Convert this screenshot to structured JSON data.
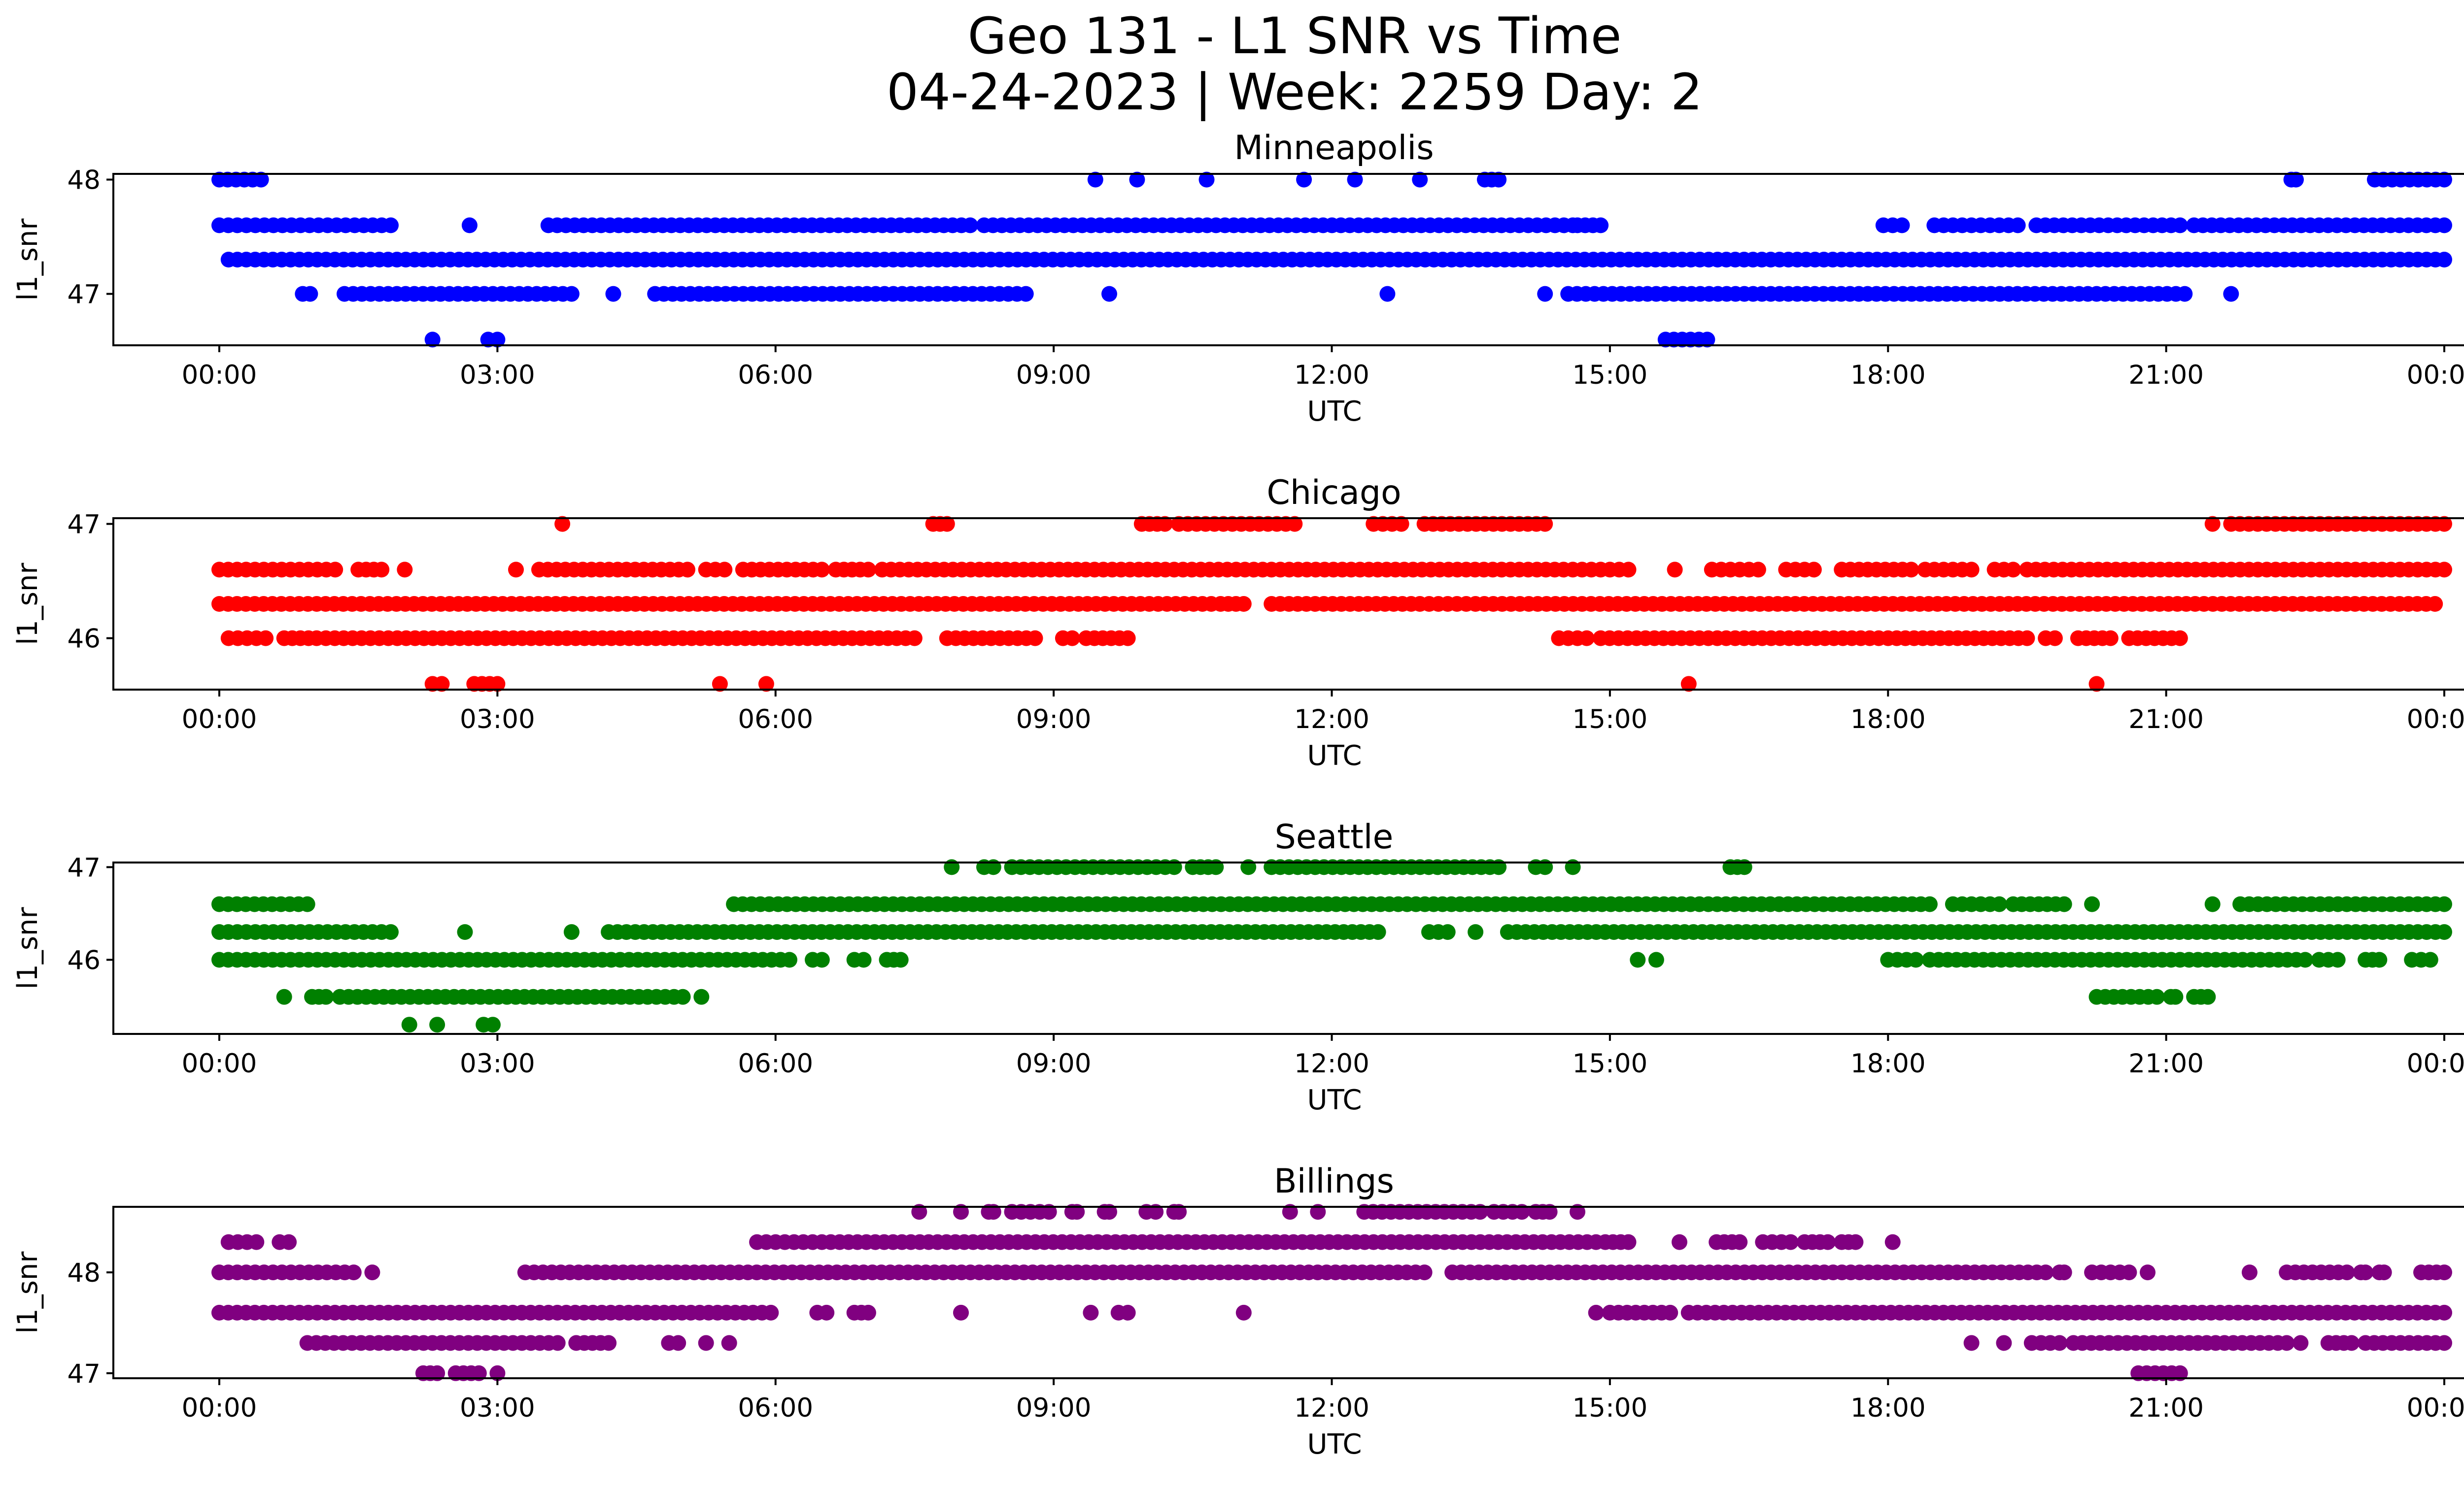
{
  "figure": {
    "title_line1": "Geo 131 - L1 SNR vs Time",
    "title_line2": "04-24-2023 | Week: 2259 Day: 2"
  },
  "chart_data": [
    {
      "type": "scatter",
      "title": "Minneapolis",
      "xlabel": "UTC",
      "ylabel": "l1_snr",
      "color": "#0000ff",
      "x_ticks": [
        "00:00",
        "03:00",
        "06:00",
        "09:00",
        "12:00",
        "15:00",
        "18:00",
        "21:00",
        "00:00"
      ],
      "x_range_hours": [
        0,
        24
      ],
      "y_ticks": [
        47,
        48
      ],
      "ylim": [
        46.55,
        48.05
      ],
      "series": [
        {
          "y": 48.0,
          "segments": [
            [
              0.0,
              0.45
            ],
            [
              9.45,
              9.45
            ],
            [
              9.9,
              9.9
            ],
            [
              10.65,
              10.65
            ],
            [
              11.7,
              11.7
            ],
            [
              12.25,
              12.25
            ],
            [
              12.95,
              12.95
            ],
            [
              13.65,
              13.8
            ],
            [
              22.35,
              22.4
            ],
            [
              23.25,
              24.0
            ]
          ]
        },
        {
          "y": 47.6,
          "segments": [
            [
              0.0,
              1.85
            ],
            [
              2.7,
              2.7
            ],
            [
              3.55,
              8.1
            ],
            [
              8.25,
              14.6
            ],
            [
              14.65,
              14.9
            ],
            [
              17.95,
              18.15
            ],
            [
              18.5,
              19.4
            ],
            [
              19.6,
              21.15
            ],
            [
              21.3,
              24.0
            ]
          ]
        },
        {
          "y": 47.3,
          "segments": [
            [
              0.1,
              24.0
            ]
          ]
        },
        {
          "y": 47.0,
          "segments": [
            [
              0.9,
              0.98
            ],
            [
              1.35,
              3.8
            ],
            [
              4.25,
              4.25
            ],
            [
              4.7,
              8.7
            ],
            [
              9.6,
              9.6
            ],
            [
              12.6,
              12.6
            ],
            [
              14.3,
              14.3
            ],
            [
              14.55,
              21.2
            ],
            [
              21.7,
              21.7
            ]
          ]
        },
        {
          "y": 46.6,
          "segments": [
            [
              2.3,
              2.3
            ],
            [
              2.9,
              3.0
            ],
            [
              15.6,
              16.05
            ]
          ]
        }
      ]
    },
    {
      "type": "scatter",
      "title": "Chicago",
      "xlabel": "UTC",
      "ylabel": "l1_snr",
      "color": "#ff0000",
      "x_ticks": [
        "00:00",
        "03:00",
        "06:00",
        "09:00",
        "12:00",
        "15:00",
        "18:00",
        "21:00",
        "00:00"
      ],
      "x_range_hours": [
        0,
        24
      ],
      "y_ticks": [
        46,
        47
      ],
      "ylim": [
        45.55,
        47.05
      ],
      "series": [
        {
          "y": 47.0,
          "segments": [
            [
              3.7,
              3.7
            ],
            [
              7.7,
              7.85
            ],
            [
              9.95,
              10.2
            ],
            [
              10.35,
              11.6
            ],
            [
              12.45,
              12.75
            ],
            [
              13.0,
              14.3
            ],
            [
              21.5,
              21.5
            ],
            [
              21.7,
              24.0
            ]
          ]
        },
        {
          "y": 46.6,
          "segments": [
            [
              0.0,
              1.25
            ],
            [
              1.5,
              1.75
            ],
            [
              2.0,
              2.0
            ],
            [
              3.2,
              3.2
            ],
            [
              3.45,
              5.05
            ],
            [
              5.25,
              5.45
            ],
            [
              5.65,
              6.5
            ],
            [
              6.65,
              7.0
            ],
            [
              7.15,
              14.5
            ],
            [
              14.6,
              15.2
            ],
            [
              15.7,
              15.7
            ],
            [
              16.1,
              16.6
            ],
            [
              16.9,
              17.2
            ],
            [
              17.5,
              18.25
            ],
            [
              18.4,
              18.9
            ],
            [
              19.15,
              19.35
            ],
            [
              19.5,
              24.0
            ]
          ]
        },
        {
          "y": 46.3,
          "segments": [
            [
              0.0,
              10.7
            ],
            [
              10.8,
              11.05
            ],
            [
              11.35,
              12.95
            ],
            [
              13.05,
              13.45
            ],
            [
              13.55,
              23.9
            ]
          ]
        },
        {
          "y": 46.0,
          "segments": [
            [
              0.1,
              0.5
            ],
            [
              0.7,
              1.05
            ],
            [
              1.15,
              7.5
            ],
            [
              7.85,
              8.8
            ],
            [
              9.1,
              9.2
            ],
            [
              9.35,
              9.8
            ],
            [
              14.45,
              14.75
            ],
            [
              14.9,
              17.9
            ],
            [
              18.0,
              19.5
            ],
            [
              19.7,
              19.8
            ],
            [
              20.05,
              20.4
            ],
            [
              20.6,
              21.15
            ]
          ]
        },
        {
          "y": 45.6,
          "segments": [
            [
              2.3,
              2.4
            ],
            [
              2.75,
              3.0
            ],
            [
              5.4,
              5.4
            ],
            [
              5.9,
              5.9
            ],
            [
              15.85,
              15.85
            ],
            [
              20.25,
              20.25
            ]
          ]
        }
      ]
    },
    {
      "type": "scatter",
      "title": "Seattle",
      "xlabel": "UTC",
      "ylabel": "l1_snr",
      "color": "#008000",
      "x_ticks": [
        "00:00",
        "03:00",
        "06:00",
        "09:00",
        "12:00",
        "15:00",
        "18:00",
        "21:00",
        "00:00"
      ],
      "x_range_hours": [
        0,
        24
      ],
      "y_ticks": [
        46,
        47
      ],
      "ylim": [
        45.2,
        47.05
      ],
      "series": [
        {
          "y": 47.0,
          "segments": [
            [
              7.9,
              7.9
            ],
            [
              8.25,
              8.35
            ],
            [
              8.55,
              10.3
            ],
            [
              10.5,
              10.75
            ],
            [
              11.1,
              11.1
            ],
            [
              11.35,
              13.8
            ],
            [
              14.2,
              14.3
            ],
            [
              14.6,
              14.6
            ],
            [
              16.3,
              16.45
            ]
          ]
        },
        {
          "y": 46.6,
          "segments": [
            [
              0.0,
              0.95
            ],
            [
              5.55,
              18.45
            ],
            [
              18.7,
              19.2
            ],
            [
              19.35,
              19.9
            ],
            [
              20.2,
              20.2
            ],
            [
              21.5,
              21.5
            ],
            [
              21.8,
              24.0
            ]
          ]
        },
        {
          "y": 46.3,
          "segments": [
            [
              0.0,
              1.75
            ],
            [
              1.85,
              1.85
            ],
            [
              2.65,
              2.65
            ],
            [
              3.8,
              3.8
            ],
            [
              4.2,
              11.75
            ],
            [
              11.85,
              12.5
            ],
            [
              13.05,
              13.25
            ],
            [
              13.55,
              13.55
            ],
            [
              13.9,
              24.0
            ]
          ]
        },
        {
          "y": 46.0,
          "segments": [
            [
              0.0,
              6.15
            ],
            [
              6.4,
              6.5
            ],
            [
              6.85,
              6.95
            ],
            [
              7.2,
              7.35
            ],
            [
              15.3,
              15.3
            ],
            [
              15.5,
              15.5
            ],
            [
              18.0,
              18.3
            ],
            [
              18.45,
              22.5
            ],
            [
              22.65,
              22.85
            ],
            [
              23.15,
              23.3
            ],
            [
              23.65,
              23.85
            ]
          ]
        },
        {
          "y": 45.6,
          "segments": [
            [
              0.7,
              0.7
            ],
            [
              1.0,
              1.15
            ],
            [
              1.3,
              5.0
            ],
            [
              5.2,
              5.2
            ],
            [
              20.25,
              20.9
            ],
            [
              21.05,
              21.1
            ],
            [
              21.3,
              21.45
            ]
          ]
        },
        {
          "y": 45.3,
          "segments": [
            [
              2.05,
              2.05
            ],
            [
              2.35,
              2.35
            ],
            [
              2.85,
              2.95
            ]
          ]
        }
      ]
    },
    {
      "type": "scatter",
      "title": "Billings",
      "xlabel": "UTC",
      "ylabel": "l1_snr",
      "color": "#800080",
      "x_ticks": [
        "00:00",
        "03:00",
        "06:00",
        "09:00",
        "12:00",
        "15:00",
        "18:00",
        "21:00",
        "00:00"
      ],
      "x_range_hours": [
        0,
        24
      ],
      "y_ticks": [
        47,
        48
      ],
      "ylim": [
        46.95,
        48.65
      ],
      "series": [
        {
          "y": 48.6,
          "segments": [
            [
              7.55,
              7.55
            ],
            [
              8.0,
              8.0
            ],
            [
              8.3,
              8.35
            ],
            [
              8.55,
              8.95
            ],
            [
              9.2,
              9.25
            ],
            [
              9.55,
              9.6
            ],
            [
              10.0,
              10.1
            ],
            [
              10.3,
              10.35
            ],
            [
              11.55,
              11.55
            ],
            [
              11.85,
              11.85
            ],
            [
              12.35,
              13.6
            ],
            [
              13.75,
              14.05
            ],
            [
              14.2,
              14.35
            ],
            [
              14.65,
              14.65
            ]
          ]
        },
        {
          "y": 48.3,
          "segments": [
            [
              0.1,
              0.4
            ],
            [
              0.65,
              0.75
            ],
            [
              5.8,
              6.4
            ],
            [
              6.5,
              14.85
            ],
            [
              14.95,
              15.2
            ],
            [
              15.75,
              15.75
            ],
            [
              16.15,
              16.4
            ],
            [
              16.65,
              16.95
            ],
            [
              17.1,
              17.35
            ],
            [
              17.5,
              17.65
            ],
            [
              18.05,
              18.05
            ]
          ]
        },
        {
          "y": 48.0,
          "segments": [
            [
              0.0,
              1.45
            ],
            [
              1.65,
              1.65
            ],
            [
              3.3,
              13.0
            ],
            [
              13.3,
              19.7
            ],
            [
              19.85,
              19.9
            ],
            [
              20.2,
              20.6
            ],
            [
              20.8,
              20.8
            ],
            [
              21.9,
              21.9
            ],
            [
              22.3,
              22.95
            ],
            [
              23.1,
              23.15
            ],
            [
              23.3,
              23.35
            ],
            [
              23.75,
              24.0
            ]
          ]
        },
        {
          "y": 47.6,
          "segments": [
            [
              0.0,
              5.95
            ],
            [
              6.45,
              6.55
            ],
            [
              6.85,
              7.0
            ],
            [
              8.0,
              8.0
            ],
            [
              9.4,
              9.4
            ],
            [
              9.7,
              9.8
            ],
            [
              11.05,
              11.05
            ],
            [
              14.85,
              14.85
            ],
            [
              15.0,
              15.65
            ],
            [
              15.85,
              20.4
            ],
            [
              20.5,
              20.9
            ],
            [
              21.0,
              24.0
            ]
          ]
        },
        {
          "y": 47.3,
          "segments": [
            [
              0.95,
              3.65
            ],
            [
              3.85,
              4.2
            ],
            [
              4.85,
              4.95
            ],
            [
              5.25,
              5.25
            ],
            [
              5.5,
              5.5
            ],
            [
              18.9,
              18.9
            ],
            [
              19.25,
              19.25
            ],
            [
              19.55,
              19.85
            ],
            [
              20.0,
              22.3
            ],
            [
              22.45,
              22.45
            ],
            [
              22.75,
              23.0
            ],
            [
              23.15,
              24.0
            ]
          ]
        },
        {
          "y": 47.0,
          "segments": [
            [
              2.2,
              2.35
            ],
            [
              2.55,
              2.8
            ],
            [
              3.0,
              3.0
            ],
            [
              20.7,
              21.15
            ]
          ]
        }
      ]
    }
  ]
}
